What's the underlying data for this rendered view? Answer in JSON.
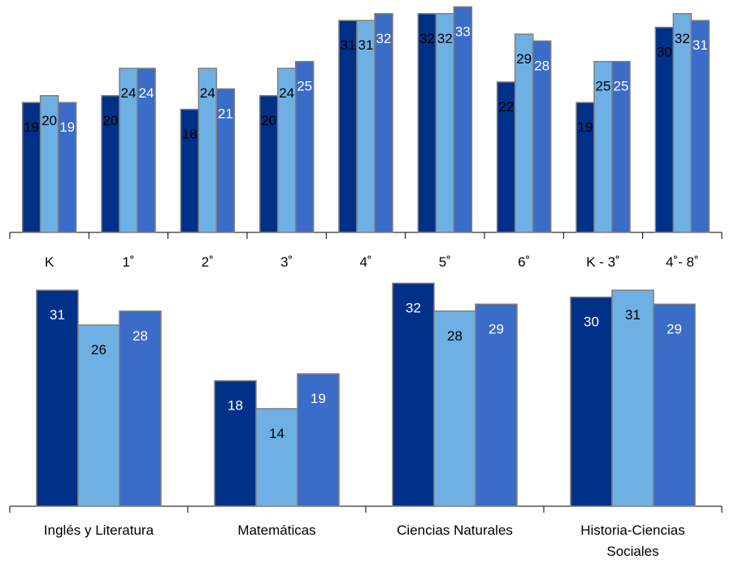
{
  "chart_data": [
    {
      "type": "bar",
      "categories": [
        "K",
        "1˚",
        "2˚",
        "3˚",
        "4˚",
        "5˚",
        "6˚",
        "K - 3˚",
        "4˚- 8˚"
      ],
      "series": [
        {
          "values": [
            19,
            20,
            18,
            20,
            31,
            32,
            22,
            19,
            30
          ],
          "color": "#003087",
          "label_color": "#000000"
        },
        {
          "values": [
            20,
            24,
            24,
            24,
            31,
            32,
            29,
            25,
            32
          ],
          "color": "#6eb0e4",
          "label_color": "#000000"
        },
        {
          "values": [
            19,
            24,
            21,
            25,
            32,
            33,
            28,
            25,
            31
          ],
          "color": "#3a6cc8",
          "label_color": "#ffffff"
        }
      ],
      "ylim": [
        0,
        34
      ],
      "grid": false,
      "data_labels": true
    },
    {
      "type": "bar",
      "categories": [
        "Inglés y Literatura",
        "Matemáticas",
        "Ciencias Naturales",
        "Historia-Ciencias Sociales"
      ],
      "series": [
        {
          "values": [
            31,
            18,
            32,
            30
          ],
          "color": "#003087",
          "label_color": "#ffffff"
        },
        {
          "values": [
            26,
            14,
            28,
            31
          ],
          "color": "#6eb0e4",
          "label_color": "#000000"
        },
        {
          "values": [
            28,
            19,
            29,
            29
          ],
          "color": "#3a6cc8",
          "label_color": "#ffffff"
        }
      ],
      "ylim": [
        0,
        33
      ],
      "grid": false,
      "data_labels": true
    }
  ]
}
